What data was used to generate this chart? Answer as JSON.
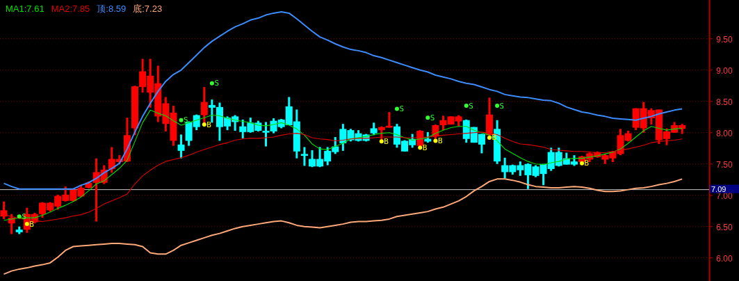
{
  "chart_data": {
    "type": "candlestick",
    "categories": [
      null,
      null,
      null,
      null,
      null,
      null,
      null,
      null,
      null,
      null,
      null,
      null,
      null,
      null,
      null,
      null,
      null,
      null,
      null,
      null,
      null,
      null,
      null,
      null,
      null,
      null,
      null,
      null,
      null,
      null,
      null,
      null,
      null,
      null,
      null,
      null,
      null,
      null,
      null,
      null,
      null,
      null,
      null,
      null,
      null,
      null,
      null,
      null,
      null,
      null,
      null,
      null,
      null,
      null,
      null,
      null,
      null,
      null,
      null,
      null,
      null,
      null,
      null,
      null,
      null,
      null,
      null,
      null,
      null,
      null,
      null,
      null,
      null,
      null,
      null,
      null,
      null,
      null,
      null,
      null,
      null,
      null,
      null,
      null,
      null,
      null,
      null,
      null,
      null
    ],
    "ohlc": [
      [
        6.66,
        6.9,
        6.62,
        6.76
      ],
      [
        6.55,
        6.7,
        6.38,
        6.64
      ],
      [
        6.44,
        6.5,
        6.38,
        6.42
      ],
      [
        6.45,
        6.8,
        6.4,
        6.7
      ],
      [
        6.57,
        6.72,
        6.55,
        6.7
      ],
      [
        6.7,
        6.89,
        6.64,
        6.88
      ],
      [
        6.76,
        6.89,
        6.74,
        6.88
      ],
      [
        6.82,
        7.01,
        6.77,
        6.99
      ],
      [
        6.91,
        7.14,
        6.9,
        7.01
      ],
      [
        6.91,
        7.1,
        6.9,
        7.09
      ],
      [
        6.98,
        7.16,
        6.97,
        7.12
      ],
      [
        7.12,
        7.22,
        7.11,
        7.2
      ],
      [
        7.2,
        7.59,
        6.58,
        7.37
      ],
      [
        7.2,
        7.48,
        7.18,
        7.41
      ],
      [
        7.42,
        7.77,
        7.36,
        7.58
      ],
      [
        7.53,
        7.64,
        7.5,
        7.58
      ],
      [
        7.54,
        8.24,
        7.53,
        7.96
      ],
      [
        8.07,
        8.75,
        7.96,
        8.74
      ],
      [
        8.73,
        9.18,
        8.64,
        8.98
      ],
      [
        8.64,
        9.18,
        8.4,
        8.91
      ],
      [
        8.26,
        9.07,
        8.17,
        8.79
      ],
      [
        8.14,
        8.57,
        8.02,
        8.47
      ],
      [
        7.87,
        8.43,
        7.79,
        8.32
      ],
      [
        7.81,
        7.97,
        7.59,
        7.71
      ],
      [
        8.17,
        8.18,
        7.79,
        7.87
      ],
      [
        8.28,
        8.29,
        8.04,
        8.09
      ],
      [
        8.28,
        8.73,
        8.16,
        8.49
      ],
      [
        8.43,
        8.53,
        8.16,
        8.41
      ],
      [
        8.41,
        8.48,
        7.87,
        8.09
      ],
      [
        8.24,
        8.26,
        8.04,
        8.1
      ],
      [
        8.26,
        8.28,
        8.03,
        8.17
      ],
      [
        8.1,
        8.21,
        7.91,
        8.01
      ],
      [
        8.16,
        8.24,
        8.0,
        8.01
      ],
      [
        8.16,
        8.19,
        8.02,
        8.03
      ],
      [
        8.03,
        8.17,
        7.78,
        8.0
      ],
      [
        8.19,
        8.23,
        7.99,
        8.02
      ],
      [
        8.21,
        8.22,
        8.07,
        8.09
      ],
      [
        8.42,
        8.57,
        8.12,
        8.12
      ],
      [
        8.18,
        8.37,
        7.59,
        7.7
      ],
      [
        7.66,
        7.77,
        7.47,
        7.63
      ],
      [
        7.58,
        7.72,
        7.45,
        7.46
      ],
      [
        7.58,
        7.77,
        7.45,
        7.46
      ],
      [
        7.71,
        7.77,
        7.48,
        7.54
      ],
      [
        7.78,
        7.93,
        7.66,
        7.69
      ],
      [
        8.06,
        8.14,
        7.71,
        7.83
      ],
      [
        8.04,
        8.06,
        7.86,
        7.88
      ],
      [
        7.99,
        8.04,
        7.86,
        7.87
      ],
      [
        7.97,
        7.98,
        7.86,
        7.87
      ],
      [
        8.07,
        8.16,
        7.96,
        7.99
      ],
      [
        8.04,
        8.1,
        7.88,
        8.09
      ],
      [
        8.08,
        8.33,
        8.08,
        8.11
      ],
      [
        8.1,
        8.14,
        7.76,
        7.81
      ],
      [
        7.87,
        7.88,
        7.7,
        7.7
      ],
      [
        7.9,
        7.98,
        7.76,
        7.8
      ],
      [
        7.79,
        8.04,
        7.76,
        8.03
      ],
      [
        7.89,
        8.01,
        7.84,
        7.87
      ],
      [
        7.94,
        8.13,
        7.9,
        8.12
      ],
      [
        8.12,
        8.27,
        8.04,
        8.2
      ],
      [
        8.13,
        8.26,
        8.13,
        8.26
      ],
      [
        8.18,
        8.28,
        8.1,
        8.26
      ],
      [
        8.2,
        8.21,
        7.84,
        7.9
      ],
      [
        8.09,
        8.09,
        7.84,
        7.84
      ],
      [
        7.98,
        7.98,
        7.67,
        7.81
      ],
      [
        7.96,
        8.56,
        7.96,
        8.29
      ],
      [
        8.06,
        8.2,
        7.5,
        7.54
      ],
      [
        7.48,
        7.6,
        7.27,
        7.37
      ],
      [
        7.48,
        7.49,
        7.33,
        7.37
      ],
      [
        7.48,
        7.54,
        7.31,
        7.4
      ],
      [
        7.5,
        7.51,
        7.1,
        7.32
      ],
      [
        7.46,
        7.48,
        7.29,
        7.31
      ],
      [
        7.5,
        7.5,
        7.16,
        7.34
      ],
      [
        7.69,
        7.76,
        7.39,
        7.42
      ],
      [
        7.69,
        7.76,
        7.46,
        7.47
      ],
      [
        7.59,
        7.68,
        7.49,
        7.49
      ],
      [
        7.54,
        7.64,
        7.47,
        7.49
      ],
      [
        7.53,
        7.63,
        7.53,
        7.62
      ],
      [
        7.57,
        7.68,
        7.53,
        7.67
      ],
      [
        7.61,
        7.7,
        7.6,
        7.69
      ],
      [
        7.57,
        7.66,
        7.5,
        7.64
      ],
      [
        7.59,
        7.71,
        7.53,
        7.7
      ],
      [
        7.66,
        8.06,
        7.64,
        7.96
      ],
      [
        7.87,
        8.03,
        7.86,
        7.99
      ],
      [
        8.08,
        8.39,
        8.04,
        8.39
      ],
      [
        8.07,
        8.49,
        8.0,
        8.39
      ],
      [
        8.23,
        8.39,
        8.13,
        8.36
      ],
      [
        7.88,
        8.37,
        7.82,
        8.37
      ],
      [
        7.9,
        8.07,
        7.8,
        8.02
      ],
      [
        8.0,
        8.17,
        8.0,
        8.12
      ],
      [
        8.06,
        8.14,
        7.98,
        8.12
      ]
    ],
    "colors": [
      "#ff0000",
      "#ff0000",
      "#00ffff",
      "#ff0000",
      "#ff0000",
      "#ff0000",
      "#ff0000",
      "#ff0000",
      "#ff0000",
      "#ff0000",
      "#ff0000",
      "#ff0000",
      "#ff0000",
      "#ff0000",
      "#ff0000",
      "#ff0000",
      "#ff0000",
      "#ff0000",
      "#ff0000",
      "#ff0000",
      "#ff0000",
      "#ff0000",
      "#ff0000",
      "#00ffff",
      "#00ffff",
      "#00ffff",
      "#ff0000",
      "#00ffff",
      "#00ffff",
      "#00ffff",
      "#00ffff",
      "#00ffff",
      "#00ffff",
      "#00ffff",
      "#00ffff",
      "#00ffff",
      "#00ffff",
      "#00ffff",
      "#00ffff",
      "#00ffff",
      "#00ffff",
      "#00ffff",
      "#00ffff",
      "#00ffff",
      "#00ffff",
      "#00ffff",
      "#00ffff",
      "#00ffff",
      "#00ffff",
      "#ff0000",
      "#ff0000",
      "#00ffff",
      "#00ffff",
      "#00ffff",
      "#ff0000",
      "#00ffff",
      "#ff0000",
      "#ff0000",
      "#ff0000",
      "#ff0000",
      "#00ffff",
      "#00ffff",
      "#00ffff",
      "#ff0000",
      "#00ffff",
      "#00ffff",
      "#00ffff",
      "#00ffff",
      "#00ffff",
      "#00ffff",
      "#00ffff",
      "#00ffff",
      "#00ffff",
      "#00ffff",
      "#00ffff",
      "#ff0000",
      "#ff0000",
      "#ff0000",
      "#ff0000",
      "#ff0000",
      "#ff0000",
      "#ff0000",
      "#ff0000",
      "#ff0000",
      "#ff0000",
      "#ff0000",
      "#ff0000",
      "#ff0000",
      "#ff0000"
    ],
    "series": [
      {
        "name": "MA1:7.61",
        "type": "line",
        "color": "#00e000",
        "values": [
          6.6,
          6.62,
          6.64,
          6.64,
          6.64,
          6.68,
          6.73,
          6.79,
          6.84,
          6.9,
          6.97,
          7.07,
          7.18,
          7.23,
          7.33,
          7.43,
          7.56,
          7.86,
          8.16,
          8.36,
          8.31,
          8.27,
          8.19,
          8.12,
          8.16,
          8.2,
          8.24,
          8.28,
          8.27,
          8.23,
          8.2,
          8.18,
          8.16,
          8.12,
          8.11,
          8.13,
          8.16,
          8.12,
          8.06,
          7.96,
          7.82,
          7.74,
          7.73,
          7.78,
          7.83,
          7.9,
          7.92,
          7.94,
          7.97,
          7.99,
          8.0,
          7.97,
          7.92,
          7.88,
          7.9,
          7.92,
          7.99,
          8.04,
          8.08,
          8.1,
          8.1,
          8.04,
          8.0,
          7.96,
          7.87,
          7.74,
          7.67,
          7.6,
          7.54,
          7.5,
          7.49,
          7.52,
          7.54,
          7.58,
          7.59,
          7.59,
          7.61,
          7.63,
          7.66,
          7.69,
          7.74,
          7.83,
          7.93,
          8.03,
          8.1,
          8.07,
          8.04,
          8.06,
          8.07
        ]
      },
      {
        "name": "MA2:7.85",
        "type": "line",
        "color": "#e00000",
        "values": [
          6.69,
          6.66,
          6.63,
          6.61,
          6.59,
          6.58,
          6.6,
          6.62,
          6.64,
          6.67,
          6.69,
          6.73,
          6.79,
          6.86,
          6.91,
          6.96,
          7.02,
          7.18,
          7.31,
          7.4,
          7.48,
          7.54,
          7.57,
          7.6,
          7.64,
          7.69,
          7.73,
          7.77,
          7.81,
          7.84,
          7.88,
          7.9,
          7.91,
          7.91,
          7.92,
          7.93,
          7.96,
          7.98,
          7.99,
          7.97,
          7.92,
          7.9,
          7.89,
          7.87,
          7.88,
          7.9,
          7.91,
          7.91,
          7.92,
          7.93,
          7.93,
          7.93,
          7.92,
          7.92,
          7.92,
          7.93,
          7.94,
          7.96,
          7.97,
          7.98,
          7.99,
          8.0,
          8.01,
          7.99,
          7.97,
          7.91,
          7.86,
          7.82,
          7.81,
          7.79,
          7.77,
          7.73,
          7.72,
          7.71,
          7.7,
          7.7,
          7.69,
          7.68,
          7.68,
          7.7,
          7.72,
          7.74,
          7.77,
          7.8,
          7.84,
          7.86,
          7.87,
          7.88,
          7.9
        ]
      },
      {
        "name": "顶:8.59",
        "type": "line",
        "color": "#3c8cff",
        "values": [
          7.19,
          7.14,
          7.1,
          7.1,
          7.1,
          7.1,
          7.1,
          7.1,
          7.1,
          7.1,
          7.16,
          7.2,
          7.27,
          7.36,
          7.43,
          7.51,
          7.74,
          8.01,
          8.26,
          8.47,
          8.66,
          8.82,
          8.93,
          9.0,
          9.12,
          9.24,
          9.36,
          9.46,
          9.54,
          9.62,
          9.69,
          9.74,
          9.8,
          9.83,
          9.88,
          9.91,
          9.93,
          9.91,
          9.82,
          9.72,
          9.62,
          9.53,
          9.48,
          9.42,
          9.37,
          9.33,
          9.31,
          9.28,
          9.23,
          9.2,
          9.16,
          9.12,
          9.08,
          9.04,
          9.0,
          8.97,
          8.92,
          8.89,
          8.86,
          8.82,
          8.79,
          8.77,
          8.73,
          8.69,
          8.66,
          8.61,
          8.59,
          8.57,
          8.56,
          8.54,
          8.52,
          8.51,
          8.47,
          8.41,
          8.37,
          8.33,
          8.31,
          8.28,
          8.26,
          8.23,
          8.22,
          8.21,
          8.2,
          8.23,
          8.26,
          8.3,
          8.33,
          8.36,
          8.38
        ]
      },
      {
        "name": "底:7.23",
        "type": "line",
        "color": "#ffa878",
        "values": [
          5.74,
          5.79,
          5.82,
          5.84,
          5.87,
          5.89,
          5.92,
          6.01,
          6.12,
          6.18,
          6.19,
          6.2,
          6.21,
          6.22,
          6.23,
          6.23,
          6.22,
          6.21,
          6.18,
          6.08,
          6.06,
          6.06,
          6.12,
          6.2,
          6.24,
          6.28,
          6.32,
          6.36,
          6.39,
          6.43,
          6.47,
          6.5,
          6.52,
          6.54,
          6.56,
          6.58,
          6.59,
          6.56,
          6.52,
          6.5,
          6.49,
          6.48,
          6.5,
          6.52,
          6.54,
          6.57,
          6.58,
          6.58,
          6.59,
          6.6,
          6.62,
          6.66,
          6.68,
          6.7,
          6.72,
          6.74,
          6.78,
          6.81,
          6.86,
          6.91,
          6.98,
          7.07,
          7.14,
          7.22,
          7.26,
          7.26,
          7.24,
          7.21,
          7.17,
          7.14,
          7.13,
          7.12,
          7.12,
          7.13,
          7.14,
          7.13,
          7.11,
          7.08,
          7.06,
          7.06,
          7.07,
          7.09,
          7.11,
          7.12,
          7.14,
          7.17,
          7.19,
          7.22,
          7.26
        ]
      },
      {
        "type": "scatter",
        "color": "#33ff33",
        "marker": "circle",
        "values": [
          null,
          null,
          6.66,
          null,
          null,
          null,
          null,
          null,
          null,
          null,
          null,
          null,
          null,
          null,
          null,
          null,
          null,
          null,
          null,
          null,
          null,
          null,
          null,
          8.2,
          null,
          null,
          null,
          8.79,
          null,
          null,
          null,
          null,
          null,
          null,
          null,
          null,
          null,
          null,
          null,
          null,
          null,
          null,
          null,
          null,
          null,
          null,
          null,
          null,
          null,
          null,
          null,
          8.38,
          null,
          null,
          null,
          8.24,
          null,
          null,
          null,
          null,
          8.43,
          null,
          null,
          null,
          8.43,
          null,
          null,
          null,
          null,
          null,
          null,
          null,
          null,
          null,
          null,
          null,
          null,
          null,
          null,
          null,
          null,
          null,
          null,
          null,
          null,
          null,
          null,
          null,
          null
        ],
        "value_labels": [
          null,
          null,
          "S",
          null,
          null,
          null,
          null,
          null,
          null,
          null,
          null,
          null,
          null,
          null,
          null,
          null,
          null,
          null,
          null,
          null,
          null,
          null,
          null,
          "S",
          null,
          null,
          null,
          "S",
          null,
          null,
          null,
          null,
          null,
          null,
          null,
          null,
          null,
          null,
          null,
          null,
          null,
          null,
          null,
          null,
          null,
          null,
          null,
          null,
          null,
          null,
          null,
          "S",
          null,
          null,
          null,
          "S",
          null,
          null,
          null,
          null,
          "S",
          null,
          null,
          null,
          "S",
          null,
          null,
          null,
          null,
          null,
          null,
          null,
          null,
          null,
          null,
          null,
          null,
          null,
          null,
          null,
          null,
          null,
          null,
          null,
          null,
          null,
          null,
          null,
          null
        ]
      },
      {
        "type": "scatter",
        "color": "#ffff00",
        "marker": "circle",
        "values": [
          null,
          null,
          null,
          6.54,
          null,
          null,
          null,
          null,
          null,
          null,
          null,
          null,
          null,
          null,
          null,
          null,
          null,
          null,
          null,
          null,
          null,
          null,
          null,
          null,
          null,
          null,
          8.13,
          null,
          null,
          null,
          null,
          null,
          null,
          null,
          null,
          null,
          null,
          null,
          null,
          null,
          null,
          null,
          null,
          null,
          null,
          null,
          null,
          null,
          null,
          7.86,
          null,
          null,
          null,
          null,
          7.76,
          null,
          7.87,
          null,
          null,
          null,
          null,
          null,
          null,
          7.92,
          null,
          null,
          null,
          null,
          null,
          null,
          null,
          null,
          null,
          null,
          null,
          7.51,
          null,
          null,
          null,
          null,
          null,
          null,
          null,
          null,
          null,
          null,
          null,
          null,
          null
        ],
        "value_labels": [
          null,
          null,
          null,
          "B",
          null,
          null,
          null,
          null,
          null,
          null,
          null,
          null,
          null,
          null,
          null,
          null,
          null,
          null,
          null,
          null,
          null,
          null,
          null,
          null,
          null,
          null,
          "B",
          null,
          null,
          null,
          null,
          null,
          null,
          null,
          null,
          null,
          null,
          null,
          null,
          null,
          null,
          null,
          null,
          null,
          null,
          null,
          null,
          null,
          null,
          "B",
          null,
          null,
          null,
          null,
          "B",
          null,
          "B",
          null,
          null,
          null,
          null,
          null,
          null,
          "B",
          null,
          null,
          null,
          null,
          null,
          null,
          null,
          null,
          null,
          null,
          null,
          "B",
          null,
          null,
          null,
          null,
          null,
          null,
          null,
          null,
          null,
          null,
          null,
          null,
          null
        ]
      }
    ],
    "ylim": [
      5.63,
      10.12
    ],
    "yticks": [
      {
        "value": 6,
        "label": "6.00"
      },
      {
        "value": 6.5,
        "label": "6.50"
      },
      {
        "value": 7,
        "label": "7.00"
      },
      {
        "value": 7.5,
        "label": "7.50"
      },
      {
        "value": 8,
        "label": "8.00"
      },
      {
        "value": 8.5,
        "label": "8.50"
      },
      {
        "value": 9,
        "label": "9.00"
      },
      {
        "value": 9.5,
        "label": "9.50"
      }
    ],
    "grid": "y",
    "legend": "top left",
    "ref_lines": [
      {
        "axis": "y",
        "value": 7.09,
        "label": "7.09",
        "color": "#c8c8c8"
      }
    ]
  }
}
